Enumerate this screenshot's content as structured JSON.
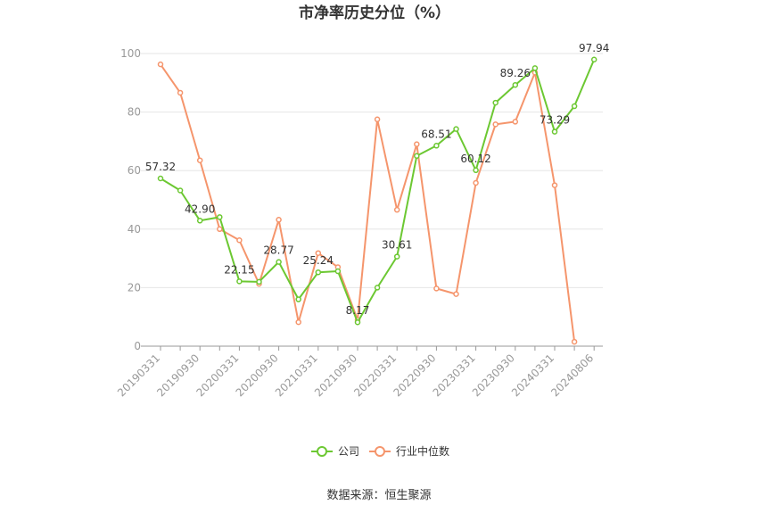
{
  "chart_data": {
    "type": "line",
    "title": "市净率历史分位（%）",
    "source": "数据来源：恒生聚源",
    "ylim": [
      0,
      100
    ],
    "yticks": [
      0,
      20,
      40,
      60,
      80,
      100
    ],
    "grid": true,
    "legend_position": "bottom",
    "x_tick_labels": [
      "20190331",
      "20190930",
      "20200331",
      "20200930",
      "20210331",
      "20210930",
      "20220331",
      "20220930",
      "20230331",
      "20230930",
      "20240331",
      "20240806"
    ],
    "x": [
      "20190331",
      "20190630",
      "20190930",
      "20191231",
      "20200331",
      "20200630",
      "20200930",
      "20201231",
      "20210331",
      "20210630",
      "20210930",
      "20211231",
      "20220331",
      "20220630",
      "20220930",
      "20221231",
      "20230331",
      "20230630",
      "20230930",
      "20231231",
      "20240331",
      "20240630",
      "20240806"
    ],
    "series": [
      {
        "name": "公司",
        "color": "#6cc832",
        "values": [
          57.32,
          53.2,
          42.9,
          44.1,
          22.15,
          22.0,
          28.77,
          16.0,
          25.24,
          25.6,
          8.17,
          20.0,
          30.61,
          65.0,
          68.51,
          74.2,
          60.12,
          83.2,
          89.26,
          95.0,
          73.29,
          82.0,
          97.94
        ],
        "labels": {
          "0": "57.32",
          "2": "42.90",
          "4": "22.15",
          "6": "28.77",
          "8": "25.24",
          "10": "8.17",
          "12": "30.61",
          "14": "68.51",
          "16": "60.12",
          "18": "89.26",
          "20": "73.29",
          "22": "97.94"
        }
      },
      {
        "name": "行业中位数",
        "color": "#f5956c",
        "values": [
          96.3,
          86.6,
          63.5,
          40.0,
          36.2,
          21.3,
          43.2,
          8.2,
          31.8,
          27.0,
          9.0,
          77.5,
          46.6,
          69.0,
          19.7,
          17.8,
          55.8,
          75.8,
          76.7,
          93.5,
          55.0,
          1.5,
          null
        ]
      }
    ]
  }
}
